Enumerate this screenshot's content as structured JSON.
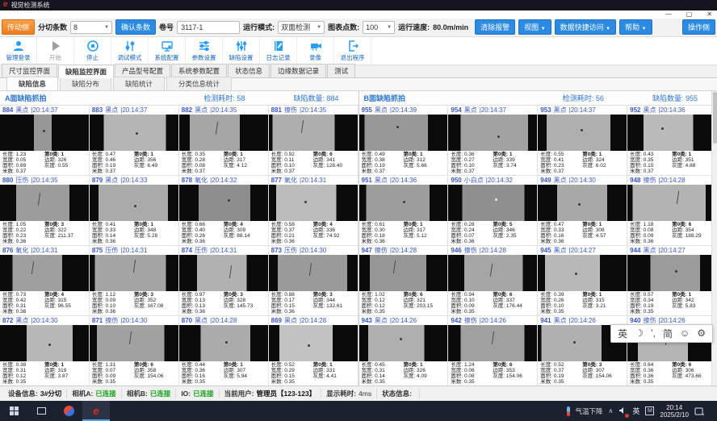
{
  "window": {
    "title": "视觉检测系统",
    "minimize": "—",
    "maximize": "▢",
    "close": "✕"
  },
  "toolbar": {
    "side_button": "传动侧",
    "slit_label": "分切条数",
    "slit_value": "8",
    "confirm_button": "确认条数",
    "roll_label": "卷号",
    "roll_value": "3117-1",
    "mode_label": "运行模式:",
    "mode_value": "双面检测",
    "points_label": "图表点数:",
    "points_value": "100",
    "speed_label": "运行速度:",
    "speed_value": "80.0m/min",
    "clear_alarm_button": "清除报警",
    "view_button": "视图",
    "quick_access_button": "数据快捷访问",
    "help_button": "帮助",
    "operate_side_button": "操作侧"
  },
  "actions": [
    {
      "label": "管理登录",
      "icon": "user"
    },
    {
      "label": "开始",
      "icon": "play",
      "disabled": true
    },
    {
      "label": "停止",
      "icon": "stop"
    },
    {
      "label": "调试模式",
      "icon": "tune"
    },
    {
      "label": "系统配置",
      "icon": "monitor"
    },
    {
      "label": "参数设置",
      "icon": "sliders-h"
    },
    {
      "label": "缺陷设置",
      "icon": "sliders-v"
    },
    {
      "label": "日志记录",
      "icon": "log"
    },
    {
      "label": "录像",
      "icon": "camera"
    },
    {
      "label": "退出程序",
      "icon": "exit"
    }
  ],
  "tabs": {
    "items": [
      "尺寸监控界面",
      "缺陷监控界面",
      "产品型号配置",
      "系统参数配置",
      "状态信息",
      "边缘数据记录",
      "测试"
    ],
    "active": 1
  },
  "subtabs": {
    "items": [
      "缺陷信息",
      "缺陷分布",
      "缺陷统计",
      "分类信息统计"
    ],
    "active": 0
  },
  "panel_labels": {
    "elapsed": "检测耗时:",
    "count": "缺陷数量:"
  },
  "cell_labels": {
    "len": "长度:",
    "wid": "宽度:",
    "area": "面积:",
    "m": "米数:",
    "margin": "边距:",
    "gray": "灰度:"
  },
  "panels": [
    {
      "title": "A面缺陷抓拍",
      "elapsed": "58",
      "count": "884",
      "cells": [
        {
          "n": "884",
          "t": "黑点",
          "time": "20:14:37",
          "len": "1.23",
          "wid": "0.05",
          "area": "0.69",
          "m": "0.37",
          "cls": "第0类",
          "clsv": "1",
          "margin": "326",
          "gray": "0.55",
          "img": {
            "l": 38,
            "r": 58,
            "g": "#979797",
            "mk": "d",
            "mx": 48,
            "my": 42
          }
        },
        {
          "n": "883",
          "t": "黑点",
          "time": "20:14:37",
          "len": "0.47",
          "wid": "0.46",
          "area": "0.19",
          "m": "0.37",
          "cls": "第0类",
          "clsv": "1",
          "margin": "356",
          "gray": "6.49",
          "img": {
            "l": 16,
            "r": 86,
            "g": "#b4b4b4",
            "mk": "d",
            "mx": 52,
            "my": 48
          }
        },
        {
          "n": "882",
          "t": "黑点",
          "time": "20:14:35",
          "len": "0.35",
          "wid": "0.28",
          "area": "0.08",
          "m": "0.37",
          "cls": "第0类",
          "clsv": "1",
          "margin": "317",
          "gray": "4.12",
          "img": {
            "l": 12,
            "r": 68,
            "g": "#a6a6a6",
            "mk": "s",
            "mx": 42,
            "my": 20
          }
        },
        {
          "n": "881",
          "t": "擦伤",
          "time": "20:14:35",
          "len": "0.92",
          "wid": "0.11",
          "area": "0.10",
          "m": "0.37",
          "cls": "第0类",
          "clsv": "6",
          "margin": "341",
          "gray": "128.40",
          "img": {
            "l": 4,
            "r": 74,
            "g": "#aeaeae",
            "mk": "s",
            "mx": 38,
            "my": 15
          }
        },
        {
          "n": "880",
          "t": "压伤",
          "time": "20:14:35",
          "len": "1.05",
          "wid": "0.22",
          "area": "0.23",
          "m": "0.36",
          "cls": "第0类",
          "clsv": "3",
          "margin": "322",
          "gray": "211.37",
          "img": {
            "l": 18,
            "r": 78,
            "g": "#9c9c9c",
            "mk": "s",
            "mx": 44,
            "my": 22
          }
        },
        {
          "n": "879",
          "t": "黑点",
          "time": "20:14:33",
          "len": "0.41",
          "wid": "0.33",
          "area": "0.14",
          "m": "0.36",
          "cls": "第0类",
          "clsv": "1",
          "margin": "348",
          "gray": "5.28",
          "img": {
            "l": 10,
            "r": 88,
            "g": "#aaaaaa",
            "mk": "d",
            "mx": 50,
            "my": 55
          }
        },
        {
          "n": "878",
          "t": "氧化",
          "time": "20:14:32",
          "len": "0.66",
          "wid": "0.40",
          "area": "0.26",
          "m": "0.36",
          "cls": "第0类",
          "clsv": "4",
          "margin": "309",
          "gray": "88.14",
          "img": {
            "l": 22,
            "r": 80,
            "g": "#8e8e8e",
            "mk": "d",
            "mx": 55,
            "my": 40
          }
        },
        {
          "n": "877",
          "t": "氧化",
          "time": "20:14:31",
          "len": "0.58",
          "wid": "0.37",
          "area": "0.21",
          "m": "0.36",
          "cls": "第0类",
          "clsv": "4",
          "margin": "336",
          "gray": "74.92",
          "img": {
            "l": 8,
            "r": 76,
            "g": "#bcbcbc",
            "mk": "d",
            "mx": 40,
            "my": 45
          }
        },
        {
          "n": "876",
          "t": "氧化",
          "time": "20:14:31",
          "len": "0.73",
          "wid": "0.42",
          "area": "0.31",
          "m": "0.36",
          "cls": "第0类",
          "clsv": "4",
          "margin": "315",
          "gray": "96.55",
          "img": {
            "l": 14,
            "r": 70,
            "g": "#9f9f9f",
            "mk": "s",
            "mx": 36,
            "my": 18
          }
        },
        {
          "n": "875",
          "t": "压伤",
          "time": "20:14:31",
          "len": "1.12",
          "wid": "0.09",
          "area": "0.10",
          "m": "0.36",
          "cls": "第0类",
          "clsv": "3",
          "margin": "352",
          "gray": "167.08",
          "img": {
            "l": 6,
            "r": 86,
            "g": "#a4a4a4",
            "mk": "s",
            "mx": 50,
            "my": 12
          }
        },
        {
          "n": "874",
          "t": "压伤",
          "time": "20:14:31",
          "len": "0.97",
          "wid": "0.13",
          "area": "0.13",
          "m": "0.36",
          "cls": "第0类",
          "clsv": "3",
          "margin": "328",
          "gray": "145.73",
          "img": {
            "l": 20,
            "r": 76,
            "g": "#b1b1b1",
            "mk": "s",
            "mx": 58,
            "my": 28
          }
        },
        {
          "n": "873",
          "t": "压伤",
          "time": "20:14:30",
          "len": "0.88",
          "wid": "0.17",
          "area": "0.15",
          "m": "0.36",
          "cls": "第0类",
          "clsv": "3",
          "margin": "344",
          "gray": "132.61",
          "img": {
            "l": 10,
            "r": 88,
            "g": "#9a9a9a",
            "mk": "s",
            "mx": 47,
            "my": 22
          }
        },
        {
          "n": "872",
          "t": "黑点",
          "time": "20:14:30",
          "len": "0.38",
          "wid": "0.31",
          "area": "0.12",
          "m": "0.35",
          "cls": "第0类",
          "clsv": "1",
          "margin": "319",
          "gray": "3.87",
          "img": {
            "l": 30,
            "r": 82,
            "g": "#b7b7b7",
            "mk": "d",
            "mx": 55,
            "my": 50
          }
        },
        {
          "n": "871",
          "t": "擦伤",
          "time": "20:14:30",
          "len": "1.31",
          "wid": "0.07",
          "area": "0.09",
          "m": "0.35",
          "cls": "第0类",
          "clsv": "6",
          "margin": "358",
          "gray": "154.06",
          "img": {
            "l": 8,
            "r": 84,
            "g": "#a1a1a1",
            "mk": "s",
            "mx": 46,
            "my": 16
          }
        },
        {
          "n": "870",
          "t": "黑点",
          "time": "20:14:28",
          "len": "0.44",
          "wid": "0.36",
          "area": "0.16",
          "m": "0.35",
          "cls": "第0类",
          "clsv": "1",
          "margin": "307",
          "gray": "5.94",
          "img": {
            "l": 24,
            "r": 80,
            "g": "#ababab",
            "mk": "d",
            "mx": 52,
            "my": 45
          }
        },
        {
          "n": "869",
          "t": "黑点",
          "time": "20:14:28",
          "len": "0.52",
          "wid": "0.29",
          "area": "0.15",
          "m": "0.35",
          "cls": "第0类",
          "clsv": "1",
          "margin": "331",
          "gray": "4.41",
          "img": {
            "l": 12,
            "r": 72,
            "g": "#c2c2c2",
            "mk": "d",
            "mx": 44,
            "my": 52
          }
        }
      ]
    },
    {
      "title": "B面缺陷抓拍",
      "elapsed": "56",
      "count": "955",
      "cells": [
        {
          "n": "955",
          "t": "黑点",
          "time": "20:14:39",
          "len": "0.49",
          "wid": "0.38",
          "area": "0.19",
          "m": "0.37",
          "cls": "第0类",
          "clsv": "1",
          "margin": "312",
          "gray": "5.66",
          "img": {
            "l": 6,
            "r": 78,
            "g": "#989898",
            "mk": "d",
            "mx": 42,
            "my": 30
          }
        },
        {
          "n": "954",
          "t": "黑点",
          "time": "20:14:37",
          "len": "0.36",
          "wid": "0.27",
          "area": "0.10",
          "m": "0.37",
          "cls": "第0类",
          "clsv": "1",
          "margin": "339",
          "gray": "3.74",
          "img": {
            "l": 14,
            "r": 90,
            "g": "#a2a2a2",
            "mk": "d",
            "mx": 55,
            "my": 58
          }
        },
        {
          "n": "953",
          "t": "黑点",
          "time": "20:14:37",
          "len": "0.55",
          "wid": "0.41",
          "area": "0.23",
          "m": "0.37",
          "cls": "第0类",
          "clsv": "1",
          "margin": "324",
          "gray": "6.02",
          "img": {
            "l": 10,
            "r": 82,
            "g": "#afafaf",
            "mk": "d",
            "mx": 48,
            "my": 40
          }
        },
        {
          "n": "952",
          "t": "黑点",
          "time": "20:14:36",
          "len": "0.43",
          "wid": "0.35",
          "area": "0.15",
          "m": "0.37",
          "cls": "第0类",
          "clsv": "1",
          "margin": "351",
          "gray": "4.88",
          "img": {
            "l": 18,
            "r": 74,
            "g": "#bababa",
            "mk": "d",
            "mx": 38,
            "my": 35
          }
        },
        {
          "n": "951",
          "t": "黑点",
          "time": "20:14:36",
          "len": "0.61",
          "wid": "0.30",
          "area": "0.18",
          "m": "0.36",
          "cls": "第0类",
          "clsv": "1",
          "margin": "317",
          "gray": "5.12",
          "img": {
            "l": 8,
            "r": 80,
            "g": "#9d9d9d",
            "mk": "d",
            "mx": 50,
            "my": 45
          }
        },
        {
          "n": "950",
          "t": "小白点",
          "time": "20:14:32",
          "len": "0.28",
          "wid": "0.24",
          "area": "0.07",
          "m": "0.36",
          "cls": "第0类",
          "clsv": "5",
          "margin": "346",
          "gray": "2.35",
          "img": {
            "l": 16,
            "r": 86,
            "g": "#8f8f8f",
            "mk": "w",
            "mx": 52,
            "my": 38
          }
        },
        {
          "n": "949",
          "t": "黑点",
          "time": "20:14:30",
          "len": "0.47",
          "wid": "0.33",
          "area": "0.16",
          "m": "0.36",
          "cls": "第0类",
          "clsv": "1",
          "margin": "308",
          "gray": "4.57",
          "img": {
            "l": 22,
            "r": 78,
            "g": "#a8a8a8",
            "mk": "d",
            "mx": 45,
            "my": 50
          }
        },
        {
          "n": "948",
          "t": "擦伤",
          "time": "20:14:28",
          "len": "1.18",
          "wid": "0.08",
          "area": "0.09",
          "m": "0.36",
          "cls": "第0类",
          "clsv": "6",
          "margin": "354",
          "gray": "188.29",
          "img": {
            "l": 6,
            "r": 88,
            "g": "#b3b3b3",
            "mk": "s",
            "mx": 56,
            "my": 18
          }
        },
        {
          "n": "947",
          "t": "擦伤",
          "time": "20:14:28",
          "len": "1.02",
          "wid": "0.12",
          "area": "0.12",
          "m": "0.35",
          "cls": "第0类",
          "clsv": "6",
          "margin": "321",
          "gray": "203.15",
          "img": {
            "l": 12,
            "r": 76,
            "g": "#969696",
            "mk": "s",
            "mx": 40,
            "my": 14
          }
        },
        {
          "n": "946",
          "t": "擦伤",
          "time": "20:14:28",
          "len": "0.94",
          "wid": "0.10",
          "area": "0.09",
          "m": "0.35",
          "cls": "第0类",
          "clsv": "6",
          "margin": "337",
          "gray": "176.44",
          "img": {
            "l": 18,
            "r": 84,
            "g": "#a5a5a5",
            "mk": "s",
            "mx": 48,
            "my": 24
          }
        },
        {
          "n": "945",
          "t": "黑点",
          "time": "20:14:27",
          "len": "0.39",
          "wid": "0.26",
          "area": "0.10",
          "m": "0.35",
          "cls": "第0类",
          "clsv": "1",
          "margin": "315",
          "gray": "3.21",
          "img": {
            "l": 8,
            "r": 70,
            "g": "#b8b8b8",
            "mk": "d",
            "mx": 42,
            "my": 48
          }
        },
        {
          "n": "944",
          "t": "黑点",
          "time": "20:14:27",
          "len": "0.57",
          "wid": "0.34",
          "area": "0.19",
          "m": "0.35",
          "cls": "第0类",
          "clsv": "1",
          "margin": "342",
          "gray": "5.83",
          "img": {
            "l": 26,
            "r": 82,
            "g": "#9b9b9b",
            "mk": "d",
            "mx": 54,
            "my": 42
          }
        },
        {
          "n": "943",
          "t": "黑点",
          "time": "20:14:26",
          "len": "0.45",
          "wid": "0.31",
          "area": "0.14",
          "m": "0.35",
          "cls": "第0类",
          "clsv": "1",
          "margin": "326",
          "gray": "4.09",
          "img": {
            "l": 10,
            "r": 74,
            "g": "#afafaf",
            "mk": "d",
            "mx": 46,
            "my": 36
          }
        },
        {
          "n": "942",
          "t": "擦伤",
          "time": "20:14:26",
          "len": "1.24",
          "wid": "0.06",
          "area": "0.08",
          "m": "0.35",
          "cls": "第0类",
          "clsv": "6",
          "margin": "353",
          "gray": "154.06",
          "img": {
            "l": 14,
            "r": 86,
            "g": "#a0a0a0",
            "mk": "s",
            "mx": 50,
            "my": 16
          }
        },
        {
          "n": "941",
          "t": "黑点",
          "time": "20:14:26",
          "len": "0.52",
          "wid": "0.37",
          "area": "0.19",
          "m": "0.35",
          "cls": "第0类",
          "clsv": "3",
          "margin": "307",
          "gray": "154.06",
          "img": {
            "l": 4,
            "r": 72,
            "g": "#b0b0b0",
            "mk": "d",
            "mx": 40,
            "my": 44
          }
        },
        {
          "n": "940",
          "t": "擦伤",
          "time": "20:14:26",
          "len": "0.64",
          "wid": "0.36",
          "area": "0.36",
          "m": "0.35",
          "cls": "第0类",
          "clsv": "6",
          "margin": "306",
          "gray": "473.66",
          "img": {
            "l": 12,
            "r": 68,
            "g": "#b5b5b5",
            "mk": "s",
            "mx": 44,
            "my": 20
          }
        }
      ]
    }
  ],
  "ime_bar": {
    "items": [
      "英",
      "☽",
      "’,",
      "简",
      "☺",
      "⚙"
    ]
  },
  "statusbar": {
    "items": [
      {
        "label": "设备信息:",
        "value": "3#分切",
        "style": "bold"
      },
      {
        "label": "相机A:",
        "value": "已连接",
        "style": "green"
      },
      {
        "label": "相机B:",
        "value": "已连接",
        "style": "green"
      },
      {
        "label": "IO:",
        "value": "已连接",
        "style": "green"
      },
      {
        "label": "当前用户:",
        "value": "管理员【123-123】",
        "style": "bold"
      },
      {
        "label": "显示耗时:",
        "value": "4ms",
        "style": ""
      },
      {
        "label": "状态信息:",
        "value": "",
        "style": ""
      }
    ]
  },
  "taskbar": {
    "weather": "气温下降",
    "chevron": "∧",
    "lang": "英",
    "time": "20:14",
    "date": "2025/2/10"
  }
}
